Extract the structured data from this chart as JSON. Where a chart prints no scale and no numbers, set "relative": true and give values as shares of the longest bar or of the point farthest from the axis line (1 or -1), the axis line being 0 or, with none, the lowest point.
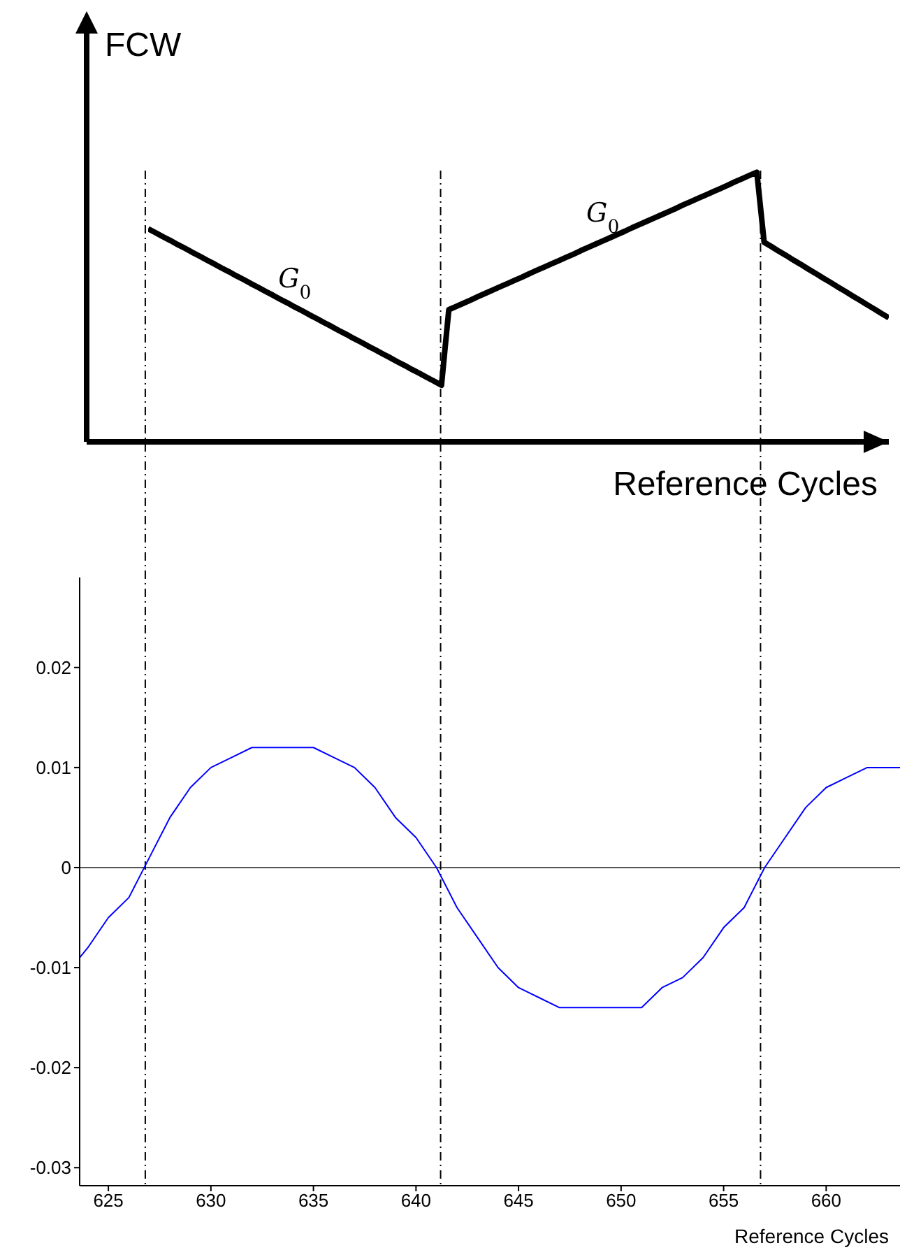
{
  "chart_data": [
    {
      "type": "line",
      "relative": true,
      "ylabel": "FCW",
      "xlabel": "Reference Cycles",
      "marker": "none",
      "categories": [
        null,
        null,
        null,
        null,
        null,
        null,
        null,
        null,
        null,
        null,
        null,
        null,
        null,
        null,
        null,
        null,
        null,
        null,
        null,
        null,
        null,
        null,
        null,
        null,
        null,
        null,
        null,
        null,
        null,
        null,
        null,
        null,
        null,
        null,
        null,
        null,
        null,
        null,
        null,
        null,
        null,
        null,
        null,
        null,
        null,
        null,
        null,
        null,
        null,
        null,
        null,
        null,
        null,
        null,
        null,
        null,
        null,
        null,
        null,
        null,
        null,
        null,
        null,
        null,
        null,
        null,
        null,
        null,
        null,
        null,
        null,
        null,
        null,
        null,
        null,
        null,
        null,
        null,
        null,
        null,
        null,
        null,
        null,
        null,
        null,
        null,
        null,
        null,
        null,
        null,
        null,
        null,
        null,
        null,
        null,
        null,
        null,
        null,
        null,
        null,
        null,
        null
      ],
      "series": [
        {
          "color": "#000000",
          "values": [
            0.79,
            0.776,
            0.761,
            0.747,
            0.732,
            0.718,
            0.703,
            0.689,
            0.674,
            0.66,
            0.645,
            0.631,
            0.616,
            0.602,
            0.587,
            0.573,
            0.558,
            0.544,
            0.529,
            0.515,
            0.5,
            0.486,
            0.471,
            0.457,
            0.442,
            0.428,
            0.413,
            0.399,
            0.384,
            0.37,
            0.355,
            0.341,
            0.326,
            0.312,
            0.297,
            0.283,
            0.268,
            0.254,
            0.239,
            0.225,
            0.21,
            0.49,
            0.502,
            0.514,
            0.526,
            0.539,
            0.551,
            0.563,
            0.575,
            0.587,
            0.599,
            0.611,
            0.624,
            0.636,
            0.648,
            0.66,
            0.672,
            0.684,
            0.696,
            0.709,
            0.721,
            0.733,
            0.745,
            0.757,
            0.769,
            0.781,
            0.794,
            0.806,
            0.818,
            0.83,
            0.842,
            0.854,
            0.866,
            0.879,
            0.891,
            0.903,
            0.915,
            0.927,
            0.939,
            0.951,
            0.964,
            0.976,
            0.988,
            1,
            0.74,
            0.724,
            0.707,
            0.691,
            0.674,
            0.658,
            0.641,
            0.625,
            0.608,
            0.592,
            0.575,
            0.559,
            0.542,
            0.526,
            0.509,
            0.493,
            0.476,
            0.46
          ]
        }
      ],
      "annotations": [
        "G$_{0}$",
        "G$_{0}$"
      ]
    },
    {
      "type": "line",
      "xlabel": "Reference Cycles",
      "xlim": [
        623.6,
        663.6
      ],
      "xticks": [
        625,
        630,
        635,
        640,
        645,
        650,
        655,
        660
      ],
      "ylim": [
        -0.0318,
        0.029
      ],
      "yticks": [
        -0.03,
        -0.02,
        -0.01,
        0,
        0.01,
        0.02
      ],
      "marker": "none",
      "series": [
        {
          "color": "#0000ff",
          "x": [
            623.6,
            624,
            625,
            626,
            627,
            628,
            629,
            630,
            631,
            632,
            633,
            634,
            635,
            636,
            637,
            638,
            639,
            640,
            641,
            642,
            643,
            644,
            645,
            646,
            647,
            648,
            649,
            650,
            651,
            652,
            653,
            654,
            655,
            656,
            657,
            658,
            659,
            660,
            661,
            662,
            663,
            663.6
          ],
          "values": [
            -0.009,
            -0.008,
            -0.005,
            -0.003,
            0.001,
            0.005,
            0.008,
            0.01,
            0.011,
            0.012,
            0.012,
            0.012,
            0.012,
            0.011,
            0.01,
            0.008,
            0.005,
            0.003,
            0,
            -0.004,
            -0.007,
            -0.01,
            -0.012,
            -0.013,
            -0.014,
            -0.014,
            -0.014,
            -0.014,
            -0.014,
            -0.012,
            -0.011,
            -0.009,
            -0.006,
            -0.004,
            0,
            0.003,
            0.006,
            0.008,
            0.009,
            0.01,
            0.01,
            0.01
          ]
        }
      ],
      "ref_lines": [
        {
          "axis": "y",
          "value": 0,
          "color": "#555555"
        },
        {
          "axis": "x",
          "value": 626.8,
          "line_style": "dashed",
          "color": "#000000"
        },
        {
          "axis": "x",
          "value": 641.2,
          "line_style": "dashed",
          "color": "#000000"
        },
        {
          "axis": "x",
          "value": 656.8,
          "line_style": "dashed",
          "color": "#000000"
        }
      ]
    }
  ]
}
